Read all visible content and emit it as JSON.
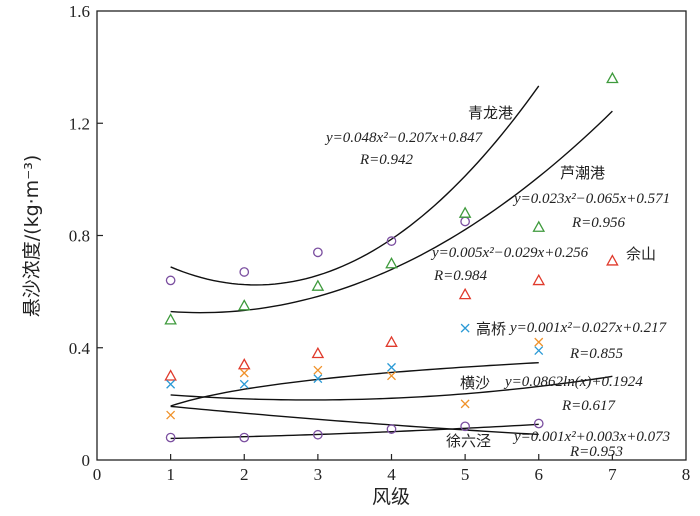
{
  "chart_data": {
    "type": "scatter",
    "xlabel": "风级",
    "ylabel": "悬沙浓度/(kg·m⁻³)",
    "xlim": [
      0,
      8
    ],
    "ylim": [
      0,
      1.6
    ],
    "xticks": [
      "0",
      "1",
      "2",
      "3",
      "4",
      "5",
      "6",
      "7",
      "8"
    ],
    "yticks": [
      "0",
      "0.4",
      "0.8",
      "1.2",
      "1.6"
    ],
    "grid": false,
    "series": [
      {
        "name": "青龙港",
        "marker": "circle",
        "color": "#7B4FA0",
        "x": [
          1,
          2,
          3,
          4,
          5
        ],
        "y": [
          0.64,
          0.67,
          0.74,
          0.78,
          0.85
        ],
        "fit": {
          "kind": "poly2",
          "a": 0.048,
          "b": -0.207,
          "c": 0.847,
          "x_range": [
            1,
            6
          ]
        },
        "equation": "y=0.048x²−0.207x+0.847",
        "r": "R=0.942"
      },
      {
        "name": "芦潮港",
        "marker": "triangle",
        "color": "#3E9A3C",
        "x": [
          1,
          2,
          3,
          4,
          5,
          6,
          7
        ],
        "y": [
          0.5,
          0.55,
          0.62,
          0.7,
          0.88,
          0.83,
          1.36
        ],
        "fit": {
          "kind": "poly2",
          "a": 0.023,
          "b": -0.065,
          "c": 0.571,
          "x_range": [
            1,
            7
          ]
        },
        "equation": "y=0.023x²−0.065x+0.571",
        "r": "R=0.956"
      },
      {
        "name": "佘山",
        "marker": "triangle",
        "color": "#E03A2C",
        "x": [
          1,
          2,
          3,
          4,
          5,
          6,
          7
        ],
        "y": [
          0.3,
          0.34,
          0.38,
          0.42,
          0.59,
          0.64,
          0.71
        ],
        "fit": {
          "kind": "poly2",
          "a": 0.005,
          "b": -0.029,
          "c": 0.256,
          "x_range": [
            1,
            7
          ]
        },
        "equation": "y=0.005x²−0.029x+0.256",
        "r": "R=0.984"
      },
      {
        "name": "高桥",
        "marker": "x",
        "color": "#2B9AD6",
        "x": [
          1,
          2,
          3,
          4,
          5,
          6
        ],
        "y": [
          0.27,
          0.27,
          0.29,
          0.33,
          0.47,
          0.39
        ],
        "fit": {
          "kind": "poly2",
          "a": 0.001,
          "b": -0.027,
          "c": 0.217,
          "x_range": [
            1,
            6
          ]
        },
        "equation": "y=0.001x²−0.027x+0.217",
        "r": "R=0.855"
      },
      {
        "name": "横沙",
        "marker": "x",
        "color": "#F0922B",
        "x": [
          1,
          2,
          3,
          4,
          5,
          6
        ],
        "y": [
          0.16,
          0.31,
          0.32,
          0.3,
          0.2,
          0.42
        ],
        "fit": {
          "kind": "log",
          "a": 0.0862,
          "b": 0.1924,
          "x_range": [
            1,
            6
          ]
        },
        "equation": "y=0.0862ln(x)+0.1924",
        "r": "R=0.617"
      },
      {
        "name": "徐六泾",
        "marker": "circle",
        "color": "#7B4FA0",
        "x": [
          1,
          2,
          3,
          4,
          5,
          6
        ],
        "y": [
          0.08,
          0.08,
          0.09,
          0.11,
          0.12,
          0.13
        ],
        "fit": {
          "kind": "poly2",
          "a": 0.001,
          "b": 0.003,
          "c": 0.073,
          "x_range": [
            1,
            6
          ]
        },
        "equation": "y=0.001x²+0.003x+0.073",
        "r": "R=0.953"
      }
    ]
  }
}
